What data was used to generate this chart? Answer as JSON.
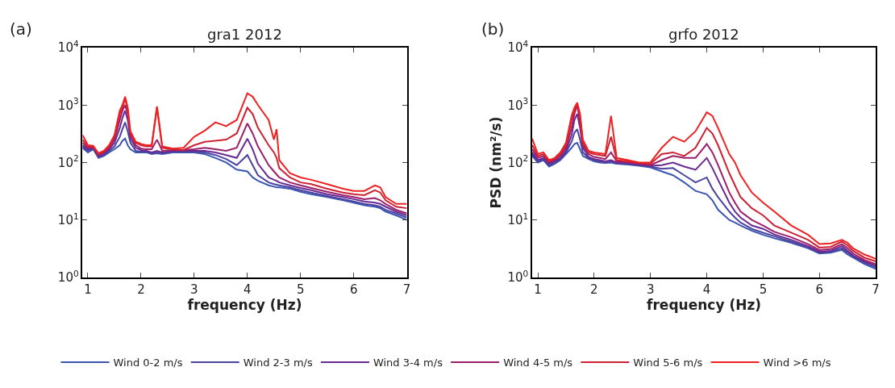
{
  "chart_data": [
    {
      "type": "line",
      "title": "gra1 2012",
      "xlabel": "frequency (Hz)",
      "annotations": [
        "(a)"
      ],
      "legend": "bottom",
      "log": "y",
      "marker": "none",
      "line_style": "solid",
      "xlim": [
        0.9,
        7
      ],
      "xticks": [
        1,
        2,
        3,
        4,
        5,
        6,
        7
      ],
      "ylim": [
        1,
        10000
      ],
      "yticks": [
        {
          "value": 1,
          "label": "10$^{0}$"
        },
        {
          "value": 10,
          "label": "10$^{1}$"
        },
        {
          "value": 100,
          "label": "10$^{2}$"
        },
        {
          "value": 1000,
          "label": "10$^{3}$"
        },
        {
          "value": 10000,
          "label": "10$^{4}$"
        }
      ],
      "x": [
        0.9,
        1.0,
        1.1,
        1.2,
        1.3,
        1.4,
        1.5,
        1.6,
        1.65,
        1.7,
        1.75,
        1.8,
        1.9,
        2.0,
        2.1,
        2.2,
        2.3,
        2.4,
        2.6,
        2.8,
        3.0,
        3.2,
        3.4,
        3.6,
        3.8,
        4.0,
        4.1,
        4.2,
        4.4,
        4.5,
        4.55,
        4.6,
        4.8,
        5.0,
        5.2,
        5.5,
        5.8,
        6.0,
        6.2,
        6.4,
        6.5,
        6.6,
        6.8,
        7.0
      ],
      "series": [
        {
          "name": "Wind 0-2 m/s",
          "color": "#3a56b0",
          "values": [
            180,
            150,
            170,
            120,
            130,
            150,
            170,
            200,
            240,
            260,
            200,
            170,
            150,
            150,
            150,
            140,
            145,
            140,
            150,
            150,
            150,
            140,
            120,
            100,
            75,
            70,
            55,
            48,
            40,
            38,
            37,
            37,
            35,
            31,
            28,
            25,
            22,
            20,
            18,
            17,
            16,
            14,
            12,
            10
          ]
        },
        {
          "name": "Wind 2-3 m/s",
          "color": "#4a43a0",
          "values": [
            190,
            160,
            175,
            125,
            135,
            160,
            190,
            280,
            380,
            500,
            350,
            220,
            160,
            155,
            155,
            145,
            150,
            145,
            155,
            155,
            155,
            150,
            135,
            115,
            90,
            135,
            90,
            60,
            45,
            42,
            41,
            40,
            37,
            33,
            30,
            26,
            23,
            21,
            19,
            18,
            17,
            15,
            13,
            11
          ]
        },
        {
          "name": "Wind 3-4 m/s",
          "color": "#6a2a94",
          "values": [
            200,
            170,
            180,
            130,
            140,
            170,
            220,
            400,
            600,
            800,
            550,
            260,
            180,
            165,
            160,
            150,
            160,
            150,
            160,
            160,
            160,
            160,
            150,
            135,
            120,
            260,
            170,
            95,
            55,
            50,
            48,
            45,
            40,
            36,
            33,
            28,
            25,
            23,
            21,
            20,
            19,
            17,
            14,
            12
          ]
        },
        {
          "name": "Wind 4-5 m/s",
          "color": "#9c1f6a",
          "values": [
            220,
            180,
            185,
            135,
            150,
            180,
            250,
            550,
            800,
            1000,
            700,
            300,
            200,
            175,
            170,
            170,
            250,
            160,
            165,
            165,
            170,
            180,
            170,
            160,
            180,
            480,
            320,
            190,
            90,
            70,
            62,
            55,
            45,
            40,
            36,
            31,
            27,
            25,
            23,
            24,
            22,
            19,
            15,
            13
          ]
        },
        {
          "name": "Wind 5-6 m/s",
          "color": "#cc2233",
          "values": [
            250,
            190,
            190,
            140,
            155,
            190,
            280,
            700,
            900,
            1300,
            800,
            320,
            220,
            200,
            190,
            190,
            900,
            180,
            170,
            165,
            200,
            230,
            240,
            250,
            320,
            900,
            700,
            400,
            200,
            150,
            120,
            80,
            55,
            45,
            42,
            35,
            30,
            28,
            27,
            33,
            30,
            22,
            17,
            16
          ]
        },
        {
          "name": "Wind >6 m/s",
          "color": "#ee2222",
          "values": [
            300,
            200,
            195,
            145,
            160,
            200,
            300,
            800,
            1000,
            1400,
            900,
            350,
            230,
            210,
            200,
            200,
            950,
            190,
            175,
            180,
            280,
            360,
            500,
            430,
            550,
            1600,
            1400,
            1000,
            550,
            250,
            380,
            110,
            65,
            55,
            50,
            42,
            35,
            32,
            32,
            40,
            37,
            25,
            19,
            19
          ]
        }
      ]
    },
    {
      "type": "line",
      "title": "grfo 2012",
      "xlabel": "frequency (Hz)",
      "ylabel": "PSD (nm²/s)",
      "annotations": [
        "(b)"
      ],
      "log": "y",
      "marker": "none",
      "line_style": "solid",
      "xlim": [
        0.9,
        7
      ],
      "xticks": [
        1,
        2,
        3,
        4,
        5,
        6,
        7
      ],
      "ylim": [
        1,
        10000
      ],
      "yticks": [
        {
          "value": 1,
          "label": "10$^{0}$"
        },
        {
          "value": 10,
          "label": "10$^{1}$"
        },
        {
          "value": 100,
          "label": "10$^{2}$"
        },
        {
          "value": 1000,
          "label": "10$^{3}$"
        },
        {
          "value": 10000,
          "label": "10$^{4}$"
        }
      ],
      "x": [
        0.9,
        1.0,
        1.1,
        1.2,
        1.3,
        1.4,
        1.5,
        1.6,
        1.65,
        1.7,
        1.75,
        1.8,
        1.9,
        2.0,
        2.1,
        2.2,
        2.3,
        2.4,
        2.6,
        2.8,
        3.0,
        3.2,
        3.4,
        3.6,
        3.8,
        4.0,
        4.1,
        4.2,
        4.4,
        4.5,
        4.6,
        4.8,
        5.0,
        5.2,
        5.5,
        5.8,
        6.0,
        6.2,
        6.4,
        6.5,
        6.6,
        6.8,
        7.0
      ],
      "series": [
        {
          "color": "#3a56b0",
          "values": [
            130,
            100,
            110,
            85,
            95,
            110,
            140,
            180,
            210,
            220,
            170,
            130,
            115,
            105,
            100,
            98,
            100,
            95,
            92,
            88,
            82,
            70,
            60,
            45,
            32,
            28,
            22,
            15,
            10,
            9,
            8,
            6.5,
            5.5,
            4.8,
            4,
            3.2,
            2.6,
            2.7,
            3,
            2.5,
            2.2,
            1.7,
            1.4
          ]
        },
        {
          "color": "#4a43a0",
          "values": [
            140,
            105,
            115,
            90,
            100,
            115,
            150,
            230,
            330,
            380,
            250,
            150,
            120,
            110,
            105,
            100,
            105,
            98,
            95,
            90,
            85,
            78,
            80,
            60,
            45,
            55,
            35,
            25,
            14,
            11,
            9,
            7,
            6,
            5.2,
            4.2,
            3.3,
            2.7,
            2.8,
            3.2,
            2.7,
            2.3,
            1.8,
            1.5
          ]
        },
        {
          "color": "#6a2a94",
          "values": [
            150,
            110,
            120,
            95,
            105,
            120,
            160,
            300,
            550,
            700,
            400,
            180,
            125,
            115,
            110,
            105,
            110,
            100,
            98,
            92,
            88,
            90,
            100,
            85,
            75,
            120,
            80,
            50,
            20,
            14,
            11,
            8,
            7,
            5.6,
            4.5,
            3.5,
            2.8,
            2.9,
            3.5,
            2.9,
            2.4,
            1.9,
            1.6
          ]
        },
        {
          "color": "#9c1f6a",
          "values": [
            170,
            120,
            130,
            100,
            110,
            130,
            180,
            400,
            700,
            1000,
            500,
            200,
            140,
            125,
            120,
            115,
            150,
            105,
            100,
            95,
            90,
            110,
            130,
            120,
            120,
            210,
            150,
            90,
            30,
            20,
            14,
            10,
            8,
            6.2,
            5,
            3.8,
            3,
            3.1,
            3.8,
            3.2,
            2.6,
            2,
            1.7
          ]
        },
        {
          "color": "#cc2233",
          "values": [
            200,
            130,
            140,
            105,
            115,
            140,
            200,
            550,
            800,
            1050,
            600,
            220,
            150,
            140,
            135,
            130,
            280,
            110,
            105,
            98,
            95,
            140,
            150,
            130,
            180,
            400,
            320,
            200,
            65,
            40,
            25,
            16,
            12,
            8,
            6,
            4.5,
            3.3,
            3.4,
            4.2,
            3.6,
            2.9,
            2.2,
            1.9
          ]
        },
        {
          "color": "#ee2222",
          "values": [
            260,
            140,
            150,
            110,
            120,
            150,
            220,
            650,
            900,
            1100,
            700,
            250,
            160,
            150,
            145,
            140,
            650,
            120,
            110,
            100,
            100,
            180,
            280,
            230,
            350,
            750,
            650,
            400,
            140,
            100,
            60,
            30,
            20,
            14,
            8,
            5.5,
            3.8,
            3.9,
            4.5,
            4,
            3.2,
            2.5,
            2.1
          ]
        }
      ]
    }
  ]
}
